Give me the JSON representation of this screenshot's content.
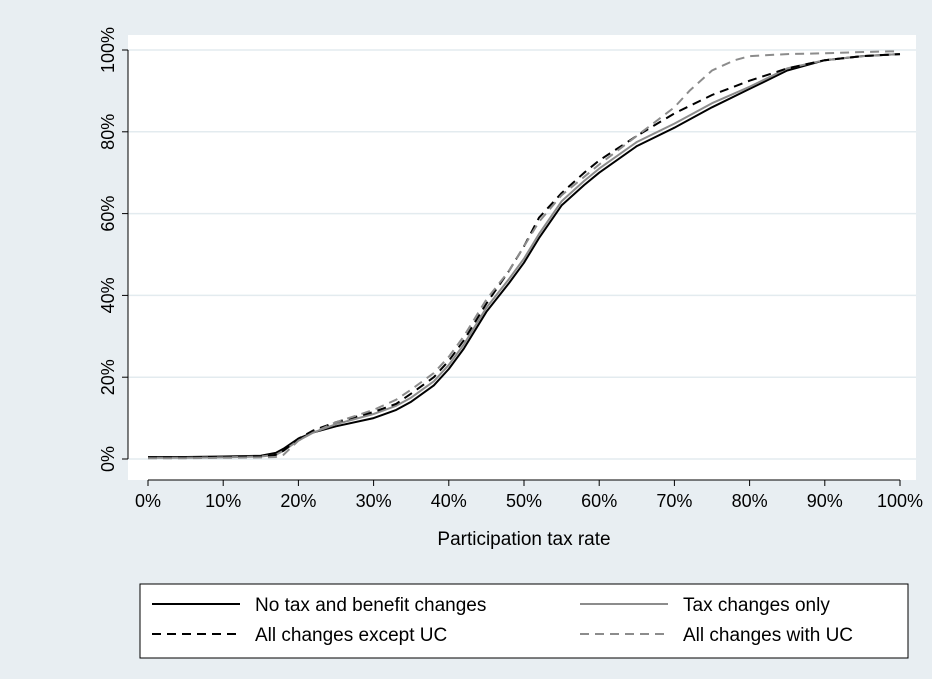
{
  "colors": {
    "outer_background": "#e8eef2",
    "plot_background": "#ffffff",
    "gridline": "#e3ebef",
    "axis": "#000000"
  },
  "chart_data": {
    "type": "line",
    "xlabel": "Participation tax rate",
    "ylabel": "",
    "xlim": [
      0,
      100
    ],
    "ylim": [
      0,
      100
    ],
    "x_ticks": [
      0,
      10,
      20,
      30,
      40,
      50,
      60,
      70,
      80,
      90,
      100
    ],
    "x_tick_labels": [
      "0%",
      "10%",
      "20%",
      "30%",
      "40%",
      "50%",
      "60%",
      "70%",
      "80%",
      "90%",
      "100%"
    ],
    "y_ticks": [
      0,
      20,
      40,
      60,
      80,
      100
    ],
    "y_tick_labels": [
      "0%",
      "20%",
      "40%",
      "60%",
      "80%",
      "100%"
    ],
    "grid": "horizontal",
    "legend_position": "bottom",
    "series": [
      {
        "name": "No tax and benefit changes",
        "color": "#000000",
        "style": "solid",
        "x": [
          0,
          5,
          10,
          15,
          17,
          18,
          20,
          22,
          25,
          30,
          33,
          35,
          38,
          40,
          42,
          45,
          48,
          50,
          52,
          55,
          58,
          60,
          65,
          70,
          75,
          80,
          85,
          90,
          95,
          100
        ],
        "y": [
          0.5,
          0.5,
          0.6,
          0.8,
          1.5,
          2.5,
          5,
          6.5,
          8,
          10,
          12,
          14,
          18,
          22,
          27,
          36,
          43,
          48,
          54,
          62,
          67,
          70,
          76.5,
          81,
          86,
          90.5,
          95,
          97.5,
          98.5,
          99
        ]
      },
      {
        "name": "Tax changes only",
        "color": "#8c8c8c",
        "style": "solid",
        "x": [
          0,
          5,
          10,
          15,
          17,
          18,
          20,
          22,
          25,
          30,
          33,
          35,
          38,
          40,
          42,
          45,
          48,
          50,
          52,
          55,
          58,
          60,
          65,
          70,
          75,
          80,
          85,
          90,
          95,
          100
        ],
        "y": [
          0.3,
          0.3,
          0.4,
          0.6,
          1,
          2,
          4.5,
          6.5,
          8.5,
          11,
          13,
          15,
          19,
          23,
          28,
          37,
          44,
          49,
          55,
          63,
          68,
          71,
          77.5,
          82,
          87,
          91,
          95.5,
          97.5,
          98.5,
          99
        ]
      },
      {
        "name": "All changes except UC",
        "color": "#000000",
        "style": "dashed",
        "x": [
          0,
          5,
          10,
          15,
          17,
          18,
          20,
          22,
          25,
          30,
          33,
          35,
          38,
          40,
          42,
          45,
          48,
          50,
          52,
          55,
          58,
          60,
          65,
          70,
          75,
          80,
          85,
          90,
          95,
          100
        ],
        "y": [
          0.3,
          0.3,
          0.4,
          0.6,
          1,
          2,
          5,
          7,
          9,
          11.5,
          13.5,
          16,
          20,
          24,
          29,
          38,
          46,
          52,
          59,
          65,
          70,
          73,
          79,
          84.5,
          89,
          92.5,
          95.5,
          97.5,
          98.5,
          99
        ]
      },
      {
        "name": "All changes with UC",
        "color": "#8c8c8c",
        "style": "dashed",
        "x": [
          0,
          5,
          10,
          15,
          17,
          18,
          20,
          22,
          25,
          30,
          33,
          35,
          38,
          40,
          42,
          45,
          48,
          50,
          52,
          55,
          58,
          60,
          65,
          70,
          72,
          75,
          78,
          80,
          85,
          90,
          95,
          100
        ],
        "y": [
          0.2,
          0.2,
          0.3,
          0.4,
          0.5,
          1,
          4.5,
          6.5,
          9,
          12,
          14.5,
          17,
          21,
          25,
          30,
          39,
          46,
          52,
          58,
          64.5,
          69,
          72,
          79,
          86,
          90,
          95,
          97.5,
          98.5,
          99,
          99.2,
          99.5,
          99.7
        ]
      }
    ]
  }
}
